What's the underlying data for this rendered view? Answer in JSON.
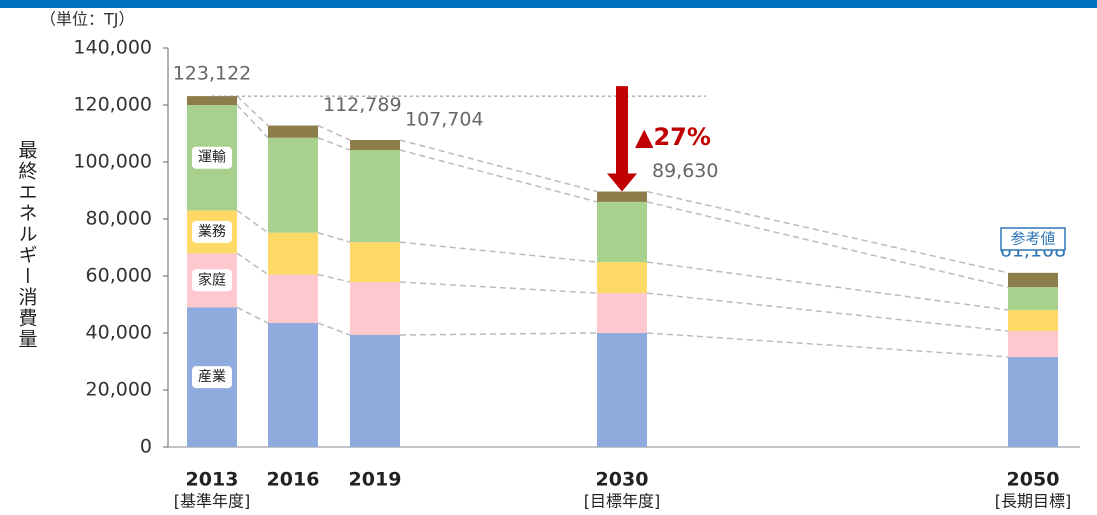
{
  "chart_data": {
    "type": "stacked_bar",
    "unit_label": "（単位：TJ）",
    "y_label": "最終エネルギー消費量",
    "categories": [
      "2013",
      "2016",
      "2019",
      "2030",
      "2050"
    ],
    "category_notes": [
      "[基準年度]",
      null,
      null,
      "[目標年度]",
      "[長期目標]"
    ],
    "series": [
      {
        "name": "産業",
        "color": "#8faadc",
        "values": [
          49000,
          43500,
          39300,
          40000,
          31600
        ]
      },
      {
        "name": "家庭",
        "color": "#ffc7ce",
        "values": [
          19000,
          17000,
          18600,
          14000,
          9100
        ]
      },
      {
        "name": "業務",
        "color": "#ffd966",
        "values": [
          15000,
          14700,
          14000,
          10900,
          7400
        ]
      },
      {
        "name": "運輸",
        "color": "#a9d18e",
        "values": [
          37000,
          33300,
          32300,
          21100,
          8000
        ]
      },
      {
        "name": null,
        "color": "#8c7d4a",
        "values": [
          3122,
          4289,
          3504,
          3630,
          5008
        ]
      }
    ],
    "totals": [
      123122,
      112789,
      107704,
      89630,
      61108
    ],
    "totals_labels": [
      "123,122",
      "112,789",
      "107,704",
      "89,630",
      "61,108"
    ],
    "reduction_label": "▲27%",
    "reference_label": "参考値",
    "ylim": [
      0,
      140000
    ],
    "yticks": [
      0,
      {
        "value": 20000,
        "label": "20,000"
      },
      {
        "value": 40000,
        "label": "40,000"
      },
      {
        "value": 60000,
        "label": "60,000"
      },
      {
        "value": 80000,
        "label": "80,000"
      },
      {
        "value": 100000,
        "label": "100,000"
      },
      {
        "value": 120000,
        "label": "120,000"
      },
      {
        "value": 140000,
        "label": "140,000"
      }
    ]
  }
}
